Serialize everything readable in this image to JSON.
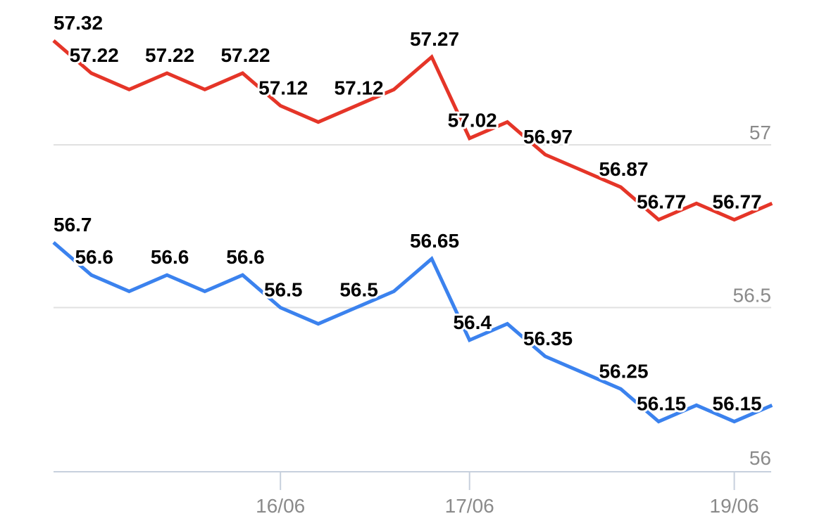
{
  "chart_data": {
    "type": "line",
    "ylim": [
      56,
      57.3
    ],
    "y_ticks": [
      56,
      56.5,
      57
    ],
    "y_tick_labels": [
      "56",
      "56.5",
      "57"
    ],
    "x_tick_labels": [
      {
        "index": 6,
        "label": "16/06"
      },
      {
        "index": 11,
        "label": "17/06"
      },
      {
        "index": 18,
        "label": "19/06"
      }
    ],
    "grid": "horizontal",
    "series": [
      {
        "color": "#e53528",
        "values": [
          57.32,
          57.22,
          57.17,
          57.22,
          57.17,
          57.22,
          57.12,
          57.07,
          57.12,
          57.17,
          57.27,
          57.02,
          57.07,
          56.97,
          56.92,
          56.87,
          56.77,
          56.82,
          56.77,
          56.82
        ],
        "labels": [
          "57.32",
          "57.22",
          "",
          "57.22",
          "",
          "57.22",
          "57.12",
          "",
          "57.12",
          "",
          "57.27",
          "57.02",
          "",
          "56.97",
          "",
          "56.87",
          "56.77",
          "",
          "56.77",
          ""
        ]
      },
      {
        "color": "#3b82ee",
        "values": [
          56.7,
          56.6,
          56.55,
          56.6,
          56.55,
          56.6,
          56.5,
          56.45,
          56.5,
          56.55,
          56.65,
          56.4,
          56.45,
          56.35,
          56.3,
          56.25,
          56.15,
          56.2,
          56.15,
          56.2
        ],
        "labels": [
          "56.7",
          "56.6",
          "",
          "56.6",
          "",
          "56.6",
          "56.5",
          "",
          "56.5",
          "",
          "56.65",
          "56.4",
          "",
          "56.35",
          "",
          "56.25",
          "56.15",
          "",
          "56.15",
          ""
        ]
      }
    ]
  }
}
